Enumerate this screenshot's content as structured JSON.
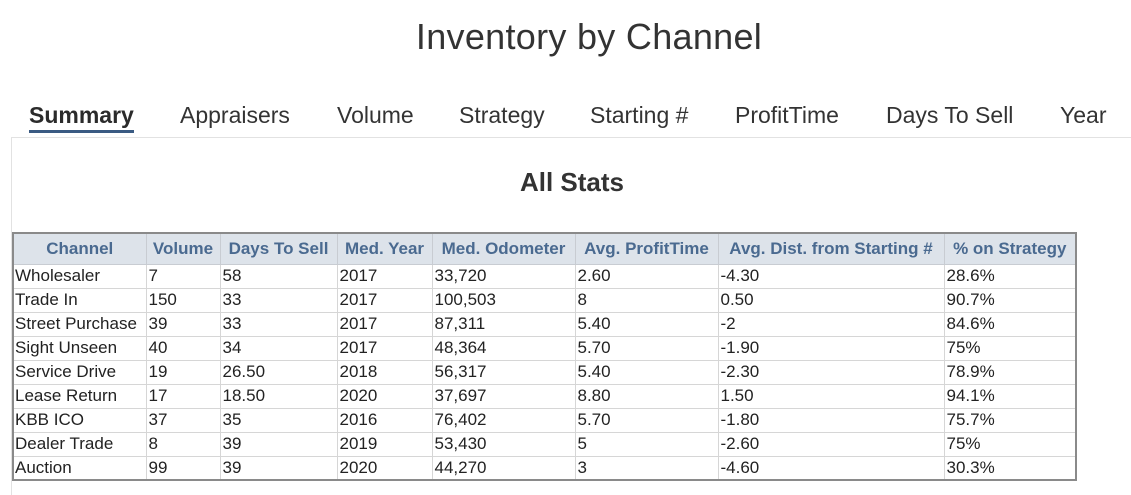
{
  "page": {
    "title": "Inventory by Channel"
  },
  "tabs": [
    {
      "label": "Summary",
      "active": true
    },
    {
      "label": "Appraisers",
      "active": false
    },
    {
      "label": "Volume",
      "active": false
    },
    {
      "label": "Strategy",
      "active": false
    },
    {
      "label": "Starting #",
      "active": false
    },
    {
      "label": "ProfitTime",
      "active": false
    },
    {
      "label": "Days To Sell",
      "active": false
    },
    {
      "label": "Year",
      "active": false
    }
  ],
  "panel": {
    "title": "All Stats"
  },
  "table": {
    "columns": [
      "Channel",
      "Volume",
      "Days To Sell",
      "Med. Year",
      "Med. Odometer",
      "Avg. ProfitTime",
      "Avg. Dist. from Starting #",
      "% on Strategy"
    ],
    "rows": [
      [
        "Wholesaler",
        "7",
        "58",
        "2017",
        "33,720",
        "2.60",
        "-4.30",
        "28.6%"
      ],
      [
        "Trade In",
        "150",
        "33",
        "2017",
        "100,503",
        "8",
        "0.50",
        "90.7%"
      ],
      [
        "Street Purchase",
        "39",
        "33",
        "2017",
        "87,311",
        "5.40",
        "-2",
        "84.6%"
      ],
      [
        "Sight Unseen",
        "40",
        "34",
        "2017",
        "48,364",
        "5.70",
        "-1.90",
        "75%"
      ],
      [
        "Service Drive",
        "19",
        "26.50",
        "2018",
        "56,317",
        "5.40",
        "-2.30",
        "78.9%"
      ],
      [
        "Lease Return",
        "17",
        "18.50",
        "2020",
        "37,697",
        "8.80",
        "1.50",
        "94.1%"
      ],
      [
        "KBB ICO",
        "37",
        "35",
        "2016",
        "76,402",
        "5.70",
        "-1.80",
        "75.7%"
      ],
      [
        "Dealer Trade",
        "8",
        "39",
        "2019",
        "53,430",
        "5",
        "-2.60",
        "75%"
      ],
      [
        "Auction",
        "99",
        "39",
        "2020",
        "44,270",
        "3",
        "-4.60",
        "30.3%"
      ]
    ]
  },
  "colors": {
    "accent": "#3a5a82",
    "header_bg": "#dde3ea",
    "header_text": "#4a6a90"
  }
}
